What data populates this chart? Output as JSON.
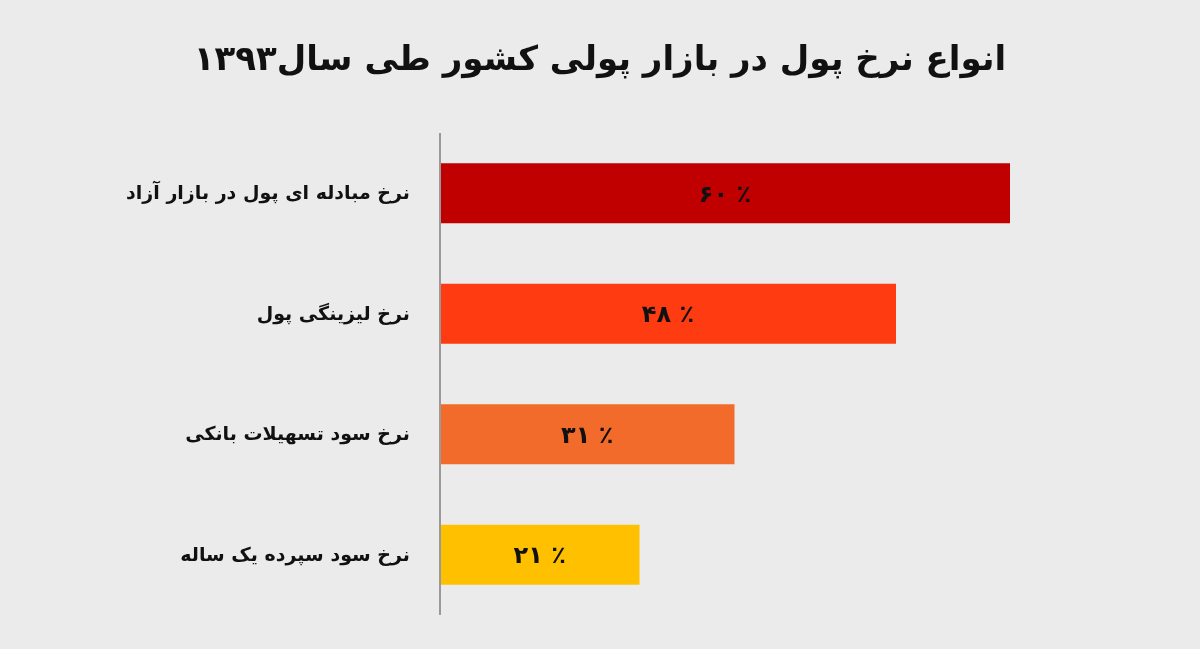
{
  "chart_data": {
    "type": "bar",
    "title": "انواع نرخ پول در بازار پولی کشور طی سال۱۳۹۳",
    "orientation": "horizontal",
    "categories": [
      "نرخ مبادله ای پول در بازار آزاد",
      "نرخ لیزینگی پول",
      "نرخ سود تسهیلات بانکی",
      "نرخ سود سپرده یک ساله"
    ],
    "values": [
      60,
      48,
      31,
      21
    ],
    "colors": [
      "#c00000",
      "#ff3b12",
      "#f26b2a",
      "#ffc000"
    ],
    "value_labels": [
      "۶۰ ٪",
      "۴۸ ٪",
      "۳۱ ٪",
      "۲۱ ٪"
    ]
  }
}
